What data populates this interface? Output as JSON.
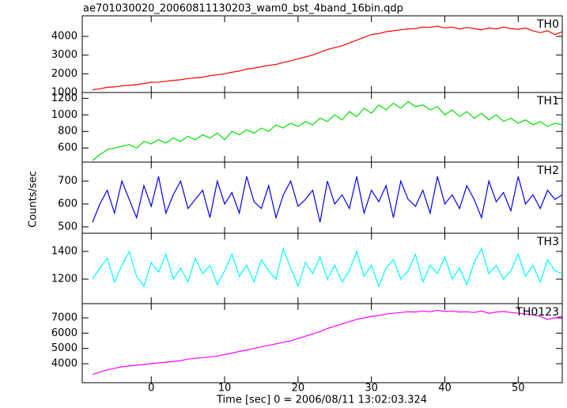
{
  "chart_data": {
    "type": "line",
    "title": "ae701030020_20060811130203_wam0_bst_4band_16bin.qdp",
    "x_label": "Time [sec] 0 = 2006/08/11 13:02:03.324",
    "y_label": "Counts/sec",
    "xlim": [
      -9.4,
      56
    ],
    "xticks": [
      0,
      10,
      20,
      30,
      40,
      50
    ],
    "x": [
      -8,
      -7,
      -6,
      -5,
      -4,
      -3,
      -2,
      -1,
      0,
      1,
      2,
      3,
      4,
      5,
      6,
      7,
      8,
      9,
      10,
      11,
      12,
      13,
      14,
      15,
      16,
      17,
      18,
      19,
      20,
      21,
      22,
      23,
      24,
      25,
      26,
      27,
      28,
      29,
      30,
      31,
      32,
      33,
      34,
      35,
      36,
      37,
      38,
      39,
      40,
      41,
      42,
      43,
      44,
      45,
      46,
      47,
      48,
      49,
      50,
      51,
      52,
      53,
      54,
      55,
      56
    ],
    "series": [
      {
        "name": "TH0",
        "color": "#ff0000",
        "ylim": [
          1000,
          5100
        ],
        "yticks": [
          1000,
          2000,
          3000,
          4000
        ],
        "values": [
          1150,
          1200,
          1280,
          1300,
          1350,
          1380,
          1420,
          1480,
          1550,
          1560,
          1600,
          1650,
          1680,
          1750,
          1780,
          1820,
          1900,
          1950,
          2000,
          2080,
          2150,
          2250,
          2300,
          2380,
          2450,
          2500,
          2600,
          2700,
          2800,
          2900,
          3000,
          3150,
          3300,
          3400,
          3500,
          3650,
          3800,
          3950,
          4100,
          4150,
          4250,
          4300,
          4350,
          4400,
          4420,
          4500,
          4480,
          4550,
          4450,
          4500,
          4400,
          4480,
          4420,
          4350,
          4450,
          4400,
          4500,
          4420,
          4380,
          4450,
          4300,
          4200,
          4300,
          4100,
          4250
        ]
      },
      {
        "name": "TH1",
        "color": "#00e000",
        "ylim": [
          430,
          1270
        ],
        "yticks": [
          600,
          800,
          1000,
          1200
        ],
        "values": [
          450,
          520,
          580,
          600,
          620,
          640,
          600,
          680,
          650,
          700,
          660,
          720,
          680,
          740,
          700,
          760,
          720,
          780,
          700,
          800,
          760,
          820,
          780,
          840,
          800,
          880,
          840,
          900,
          860,
          920,
          880,
          960,
          920,
          1000,
          940,
          1040,
          980,
          1080,
          1020,
          1120,
          1060,
          1140,
          1080,
          1160,
          1100,
          1120,
          1060,
          1100,
          1000,
          1060,
          980,
          1040,
          960,
          1020,
          940,
          1000,
          920,
          960,
          900,
          940,
          880,
          920,
          860,
          900,
          880
        ]
      },
      {
        "name": "TH2",
        "color": "#0000ff",
        "ylim": [
          472,
          783
        ],
        "yticks": [
          500,
          600,
          700
        ],
        "values": [
          520,
          600,
          660,
          560,
          700,
          620,
          540,
          680,
          590,
          720,
          560,
          640,
          700,
          580,
          620,
          660,
          540,
          700,
          600,
          650,
          560,
          720,
          610,
          580,
          680,
          540,
          640,
          700,
          590,
          620,
          660,
          520,
          700,
          600,
          640,
          580,
          720,
          560,
          660,
          610,
          680,
          540,
          700,
          620,
          590,
          660,
          560,
          720,
          600,
          640,
          580,
          680,
          620,
          540,
          700,
          610,
          650,
          570,
          720,
          600,
          640,
          580,
          660,
          620,
          640
        ]
      },
      {
        "name": "TH3",
        "color": "#00ffff",
        "ylim": [
          1023,
          1531
        ],
        "yticks": [
          1200,
          1400
        ],
        "values": [
          1200,
          1280,
          1350,
          1180,
          1300,
          1400,
          1220,
          1150,
          1320,
          1250,
          1380,
          1200,
          1280,
          1180,
          1350,
          1240,
          1300,
          1160,
          1260,
          1380,
          1220,
          1300,
          1180,
          1340,
          1260,
          1200,
          1420,
          1280,
          1150,
          1320,
          1240,
          1360,
          1200,
          1300,
          1180,
          1260,
          1400,
          1220,
          1300,
          1150,
          1280,
          1340,
          1200,
          1260,
          1380,
          1180,
          1300,
          1240,
          1360,
          1200,
          1280,
          1160,
          1320,
          1420,
          1240,
          1300,
          1200,
          1260,
          1380,
          1220,
          1300,
          1180,
          1340,
          1260,
          1240
        ]
      },
      {
        "name": "TH0123",
        "color": "#ff00ff",
        "ylim": [
          2760,
          7930
        ],
        "yticks": [
          4000,
          5000,
          6000,
          7000
        ],
        "values": [
          3300,
          3450,
          3600,
          3700,
          3800,
          3850,
          3900,
          3950,
          4000,
          4050,
          4100,
          4150,
          4200,
          4300,
          4350,
          4400,
          4450,
          4500,
          4600,
          4700,
          4800,
          4900,
          5000,
          5100,
          5200,
          5300,
          5400,
          5500,
          5650,
          5800,
          5950,
          6100,
          6300,
          6450,
          6600,
          6750,
          6900,
          7000,
          7100,
          7150,
          7250,
          7300,
          7350,
          7400,
          7380,
          7450,
          7400,
          7500,
          7420,
          7450,
          7380,
          7400,
          7350,
          7450,
          7300,
          7380,
          7420,
          7350,
          7300,
          7250,
          7200,
          7100,
          6900,
          7000,
          7100
        ]
      }
    ]
  }
}
